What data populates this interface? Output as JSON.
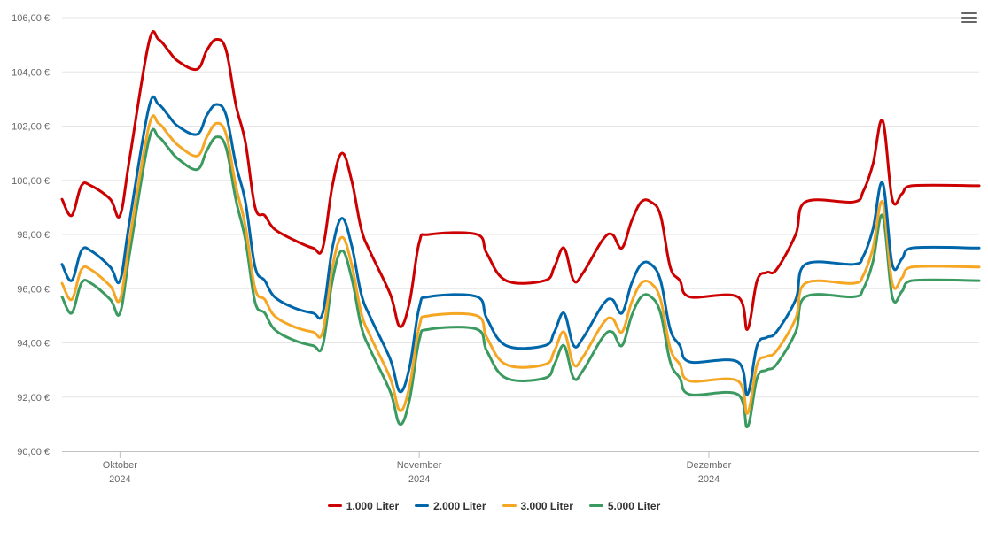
{
  "chart_data": {
    "type": "line",
    "x_axis": {
      "ticks": [
        {
          "date": "2024-10-01",
          "label": "Oktober",
          "sublabel": "2024"
        },
        {
          "date": "2024-11-01",
          "label": "November",
          "sublabel": "2024"
        },
        {
          "date": "2024-12-01",
          "label": "Dezember",
          "sublabel": "2024"
        }
      ],
      "xlim": [
        "2024-09-25",
        "2024-12-29"
      ]
    },
    "y_axis": {
      "ylim": [
        90,
        106
      ],
      "ticks": [
        "90,00 €",
        "92,00 €",
        "94,00 €",
        "96,00 €",
        "98,00 €",
        "100,00 €",
        "102,00 €",
        "104,00 €",
        "106,00 €"
      ],
      "tick_values": [
        90,
        92,
        94,
        96,
        98,
        100,
        102,
        104,
        106
      ]
    },
    "grid": true,
    "legend_position": "bottom-center",
    "series": [
      {
        "name": "1.000 Liter",
        "color": "#cc0000",
        "points": [
          [
            "2024-09-25",
            99.3
          ],
          [
            "2024-09-26",
            98.7
          ],
          [
            "2024-09-27",
            99.8
          ],
          [
            "2024-09-28",
            99.8
          ],
          [
            "2024-09-30",
            99.3
          ],
          [
            "2024-10-01",
            98.7
          ],
          [
            "2024-10-02",
            100.8
          ],
          [
            "2024-10-04",
            105.1
          ],
          [
            "2024-10-05",
            105.2
          ],
          [
            "2024-10-06",
            104.8
          ],
          [
            "2024-10-07",
            104.4
          ],
          [
            "2024-10-09",
            104.1
          ],
          [
            "2024-10-10",
            104.8
          ],
          [
            "2024-10-11",
            105.2
          ],
          [
            "2024-10-12",
            104.8
          ],
          [
            "2024-10-13",
            102.8
          ],
          [
            "2024-10-14",
            101.4
          ],
          [
            "2024-10-15",
            99.0
          ],
          [
            "2024-10-16",
            98.7
          ],
          [
            "2024-10-17",
            98.2
          ],
          [
            "2024-10-19",
            97.8
          ],
          [
            "2024-10-21",
            97.5
          ],
          [
            "2024-10-22",
            97.5
          ],
          [
            "2024-10-23",
            99.8
          ],
          [
            "2024-10-24",
            101.0
          ],
          [
            "2024-10-25",
            100.0
          ],
          [
            "2024-10-26",
            98.2
          ],
          [
            "2024-10-27",
            97.3
          ],
          [
            "2024-10-29",
            95.8
          ],
          [
            "2024-10-30",
            94.6
          ],
          [
            "2024-10-31",
            95.5
          ],
          [
            "2024-11-01",
            97.7
          ],
          [
            "2024-11-02",
            98.0
          ],
          [
            "2024-11-07",
            98.0
          ],
          [
            "2024-11-08",
            97.3
          ],
          [
            "2024-11-10",
            96.3
          ],
          [
            "2024-11-14",
            96.3
          ],
          [
            "2024-11-15",
            96.8
          ],
          [
            "2024-11-16",
            97.5
          ],
          [
            "2024-11-17",
            96.3
          ],
          [
            "2024-11-18",
            96.6
          ],
          [
            "2024-11-20",
            97.8
          ],
          [
            "2024-11-21",
            98.0
          ],
          [
            "2024-11-22",
            97.5
          ],
          [
            "2024-11-23",
            98.5
          ],
          [
            "2024-11-24",
            99.2
          ],
          [
            "2024-11-25",
            99.2
          ],
          [
            "2024-11-26",
            98.7
          ],
          [
            "2024-11-27",
            96.8
          ],
          [
            "2024-11-28",
            96.3
          ],
          [
            "2024-11-29",
            95.7
          ],
          [
            "2024-12-04",
            95.7
          ],
          [
            "2024-12-05",
            94.5
          ],
          [
            "2024-12-06",
            96.3
          ],
          [
            "2024-12-07",
            96.6
          ],
          [
            "2024-12-08",
            96.7
          ],
          [
            "2024-12-10",
            98.0
          ],
          [
            "2024-12-11",
            99.2
          ],
          [
            "2024-12-16",
            99.2
          ],
          [
            "2024-12-17",
            99.6
          ],
          [
            "2024-12-18",
            100.6
          ],
          [
            "2024-12-19",
            102.2
          ],
          [
            "2024-12-20",
            99.3
          ],
          [
            "2024-12-21",
            99.5
          ],
          [
            "2024-12-22",
            99.8
          ],
          [
            "2024-12-29",
            99.8
          ]
        ]
      },
      {
        "name": "2.000 Liter",
        "color": "#0066aa",
        "points": [
          [
            "2024-09-25",
            96.9
          ],
          [
            "2024-09-26",
            96.3
          ],
          [
            "2024-09-27",
            97.4
          ],
          [
            "2024-09-28",
            97.4
          ],
          [
            "2024-09-30",
            96.8
          ],
          [
            "2024-10-01",
            96.3
          ],
          [
            "2024-10-02",
            98.5
          ],
          [
            "2024-10-04",
            102.7
          ],
          [
            "2024-10-05",
            102.8
          ],
          [
            "2024-10-06",
            102.4
          ],
          [
            "2024-10-07",
            102.0
          ],
          [
            "2024-10-09",
            101.7
          ],
          [
            "2024-10-10",
            102.4
          ],
          [
            "2024-10-11",
            102.8
          ],
          [
            "2024-10-12",
            102.4
          ],
          [
            "2024-10-13",
            100.6
          ],
          [
            "2024-10-14",
            99.2
          ],
          [
            "2024-10-15",
            96.8
          ],
          [
            "2024-10-16",
            96.3
          ],
          [
            "2024-10-17",
            95.7
          ],
          [
            "2024-10-19",
            95.3
          ],
          [
            "2024-10-21",
            95.1
          ],
          [
            "2024-10-22",
            95.1
          ],
          [
            "2024-10-23",
            97.5
          ],
          [
            "2024-10-24",
            98.6
          ],
          [
            "2024-10-25",
            97.6
          ],
          [
            "2024-10-26",
            95.8
          ],
          [
            "2024-10-27",
            94.9
          ],
          [
            "2024-10-29",
            93.4
          ],
          [
            "2024-10-30",
            92.2
          ],
          [
            "2024-10-31",
            93.1
          ],
          [
            "2024-11-01",
            95.3
          ],
          [
            "2024-11-02",
            95.7
          ],
          [
            "2024-11-07",
            95.7
          ],
          [
            "2024-11-08",
            94.9
          ],
          [
            "2024-11-10",
            93.9
          ],
          [
            "2024-11-14",
            93.9
          ],
          [
            "2024-11-15",
            94.4
          ],
          [
            "2024-11-16",
            95.1
          ],
          [
            "2024-11-17",
            93.9
          ],
          [
            "2024-11-18",
            94.2
          ],
          [
            "2024-11-20",
            95.4
          ],
          [
            "2024-11-21",
            95.6
          ],
          [
            "2024-11-22",
            95.1
          ],
          [
            "2024-11-23",
            96.2
          ],
          [
            "2024-11-24",
            96.9
          ],
          [
            "2024-11-25",
            96.9
          ],
          [
            "2024-11-26",
            96.3
          ],
          [
            "2024-11-27",
            94.5
          ],
          [
            "2024-11-28",
            93.9
          ],
          [
            "2024-11-29",
            93.3
          ],
          [
            "2024-12-04",
            93.3
          ],
          [
            "2024-12-05",
            92.1
          ],
          [
            "2024-12-06",
            93.9
          ],
          [
            "2024-12-07",
            94.2
          ],
          [
            "2024-12-08",
            94.4
          ],
          [
            "2024-12-10",
            95.6
          ],
          [
            "2024-12-11",
            96.9
          ],
          [
            "2024-12-16",
            96.9
          ],
          [
            "2024-12-17",
            97.2
          ],
          [
            "2024-12-18",
            98.2
          ],
          [
            "2024-12-19",
            99.9
          ],
          [
            "2024-12-20",
            96.9
          ],
          [
            "2024-12-21",
            97.1
          ],
          [
            "2024-12-22",
            97.5
          ],
          [
            "2024-12-29",
            97.5
          ]
        ]
      },
      {
        "name": "3.000 Liter",
        "color": "#f5a623",
        "points": [
          [
            "2024-09-25",
            96.2
          ],
          [
            "2024-09-26",
            95.6
          ],
          [
            "2024-09-27",
            96.7
          ],
          [
            "2024-09-28",
            96.7
          ],
          [
            "2024-09-30",
            96.1
          ],
          [
            "2024-10-01",
            95.6
          ],
          [
            "2024-10-02",
            97.8
          ],
          [
            "2024-10-04",
            102.0
          ],
          [
            "2024-10-05",
            102.1
          ],
          [
            "2024-10-06",
            101.7
          ],
          [
            "2024-10-07",
            101.3
          ],
          [
            "2024-10-09",
            100.9
          ],
          [
            "2024-10-10",
            101.6
          ],
          [
            "2024-10-11",
            102.1
          ],
          [
            "2024-10-12",
            101.7
          ],
          [
            "2024-10-13",
            99.8
          ],
          [
            "2024-10-14",
            98.3
          ],
          [
            "2024-10-15",
            96.0
          ],
          [
            "2024-10-16",
            95.6
          ],
          [
            "2024-10-17",
            95.0
          ],
          [
            "2024-10-19",
            94.6
          ],
          [
            "2024-10-21",
            94.4
          ],
          [
            "2024-10-22",
            94.4
          ],
          [
            "2024-10-23",
            96.8
          ],
          [
            "2024-10-24",
            97.9
          ],
          [
            "2024-10-25",
            96.9
          ],
          [
            "2024-10-26",
            95.1
          ],
          [
            "2024-10-27",
            94.2
          ],
          [
            "2024-10-29",
            92.7
          ],
          [
            "2024-10-30",
            91.5
          ],
          [
            "2024-10-31",
            92.4
          ],
          [
            "2024-11-01",
            94.6
          ],
          [
            "2024-11-02",
            95.0
          ],
          [
            "2024-11-07",
            95.0
          ],
          [
            "2024-11-08",
            94.2
          ],
          [
            "2024-11-10",
            93.2
          ],
          [
            "2024-11-14",
            93.2
          ],
          [
            "2024-11-15",
            93.7
          ],
          [
            "2024-11-16",
            94.4
          ],
          [
            "2024-11-17",
            93.2
          ],
          [
            "2024-11-18",
            93.5
          ],
          [
            "2024-11-20",
            94.7
          ],
          [
            "2024-11-21",
            94.9
          ],
          [
            "2024-11-22",
            94.4
          ],
          [
            "2024-11-23",
            95.5
          ],
          [
            "2024-11-24",
            96.2
          ],
          [
            "2024-11-25",
            96.2
          ],
          [
            "2024-11-26",
            95.6
          ],
          [
            "2024-11-27",
            93.8
          ],
          [
            "2024-11-28",
            93.2
          ],
          [
            "2024-11-29",
            92.6
          ],
          [
            "2024-12-04",
            92.6
          ],
          [
            "2024-12-05",
            91.4
          ],
          [
            "2024-12-06",
            93.2
          ],
          [
            "2024-12-07",
            93.5
          ],
          [
            "2024-12-08",
            93.7
          ],
          [
            "2024-12-10",
            94.9
          ],
          [
            "2024-12-11",
            96.2
          ],
          [
            "2024-12-16",
            96.2
          ],
          [
            "2024-12-17",
            96.5
          ],
          [
            "2024-12-18",
            97.5
          ],
          [
            "2024-12-19",
            99.2
          ],
          [
            "2024-12-20",
            96.2
          ],
          [
            "2024-12-21",
            96.4
          ],
          [
            "2024-12-22",
            96.8
          ],
          [
            "2024-12-29",
            96.8
          ]
        ]
      },
      {
        "name": "5.000 Liter",
        "color": "#3a9a5f",
        "points": [
          [
            "2024-09-25",
            95.7
          ],
          [
            "2024-09-26",
            95.1
          ],
          [
            "2024-09-27",
            96.2
          ],
          [
            "2024-09-28",
            96.2
          ],
          [
            "2024-09-30",
            95.6
          ],
          [
            "2024-10-01",
            95.1
          ],
          [
            "2024-10-02",
            97.3
          ],
          [
            "2024-10-04",
            101.5
          ],
          [
            "2024-10-05",
            101.6
          ],
          [
            "2024-10-06",
            101.2
          ],
          [
            "2024-10-07",
            100.8
          ],
          [
            "2024-10-09",
            100.4
          ],
          [
            "2024-10-10",
            101.1
          ],
          [
            "2024-10-11",
            101.6
          ],
          [
            "2024-10-12",
            101.2
          ],
          [
            "2024-10-13",
            99.3
          ],
          [
            "2024-10-14",
            97.8
          ],
          [
            "2024-10-15",
            95.5
          ],
          [
            "2024-10-16",
            95.1
          ],
          [
            "2024-10-17",
            94.5
          ],
          [
            "2024-10-19",
            94.1
          ],
          [
            "2024-10-21",
            93.9
          ],
          [
            "2024-10-22",
            93.9
          ],
          [
            "2024-10-23",
            96.3
          ],
          [
            "2024-10-24",
            97.4
          ],
          [
            "2024-10-25",
            96.4
          ],
          [
            "2024-10-26",
            94.6
          ],
          [
            "2024-10-27",
            93.7
          ],
          [
            "2024-10-29",
            92.2
          ],
          [
            "2024-10-30",
            91.0
          ],
          [
            "2024-10-31",
            91.9
          ],
          [
            "2024-11-01",
            94.1
          ],
          [
            "2024-11-02",
            94.5
          ],
          [
            "2024-11-07",
            94.5
          ],
          [
            "2024-11-08",
            93.7
          ],
          [
            "2024-11-10",
            92.7
          ],
          [
            "2024-11-14",
            92.7
          ],
          [
            "2024-11-15",
            93.2
          ],
          [
            "2024-11-16",
            93.9
          ],
          [
            "2024-11-17",
            92.7
          ],
          [
            "2024-11-18",
            93.0
          ],
          [
            "2024-11-20",
            94.2
          ],
          [
            "2024-11-21",
            94.4
          ],
          [
            "2024-11-22",
            93.9
          ],
          [
            "2024-11-23",
            95.0
          ],
          [
            "2024-11-24",
            95.7
          ],
          [
            "2024-11-25",
            95.7
          ],
          [
            "2024-11-26",
            95.1
          ],
          [
            "2024-11-27",
            93.3
          ],
          [
            "2024-11-28",
            92.7
          ],
          [
            "2024-11-29",
            92.1
          ],
          [
            "2024-12-04",
            92.1
          ],
          [
            "2024-12-05",
            90.9
          ],
          [
            "2024-12-06",
            92.7
          ],
          [
            "2024-12-07",
            93.0
          ],
          [
            "2024-12-08",
            93.2
          ],
          [
            "2024-12-10",
            94.4
          ],
          [
            "2024-12-11",
            95.7
          ],
          [
            "2024-12-16",
            95.7
          ],
          [
            "2024-12-17",
            96.0
          ],
          [
            "2024-12-18",
            97.0
          ],
          [
            "2024-12-19",
            98.7
          ],
          [
            "2024-12-20",
            95.7
          ],
          [
            "2024-12-21",
            95.9
          ],
          [
            "2024-12-22",
            96.3
          ],
          [
            "2024-12-29",
            96.3
          ]
        ]
      }
    ]
  },
  "menu": {
    "icon": "hamburger-menu-icon"
  }
}
